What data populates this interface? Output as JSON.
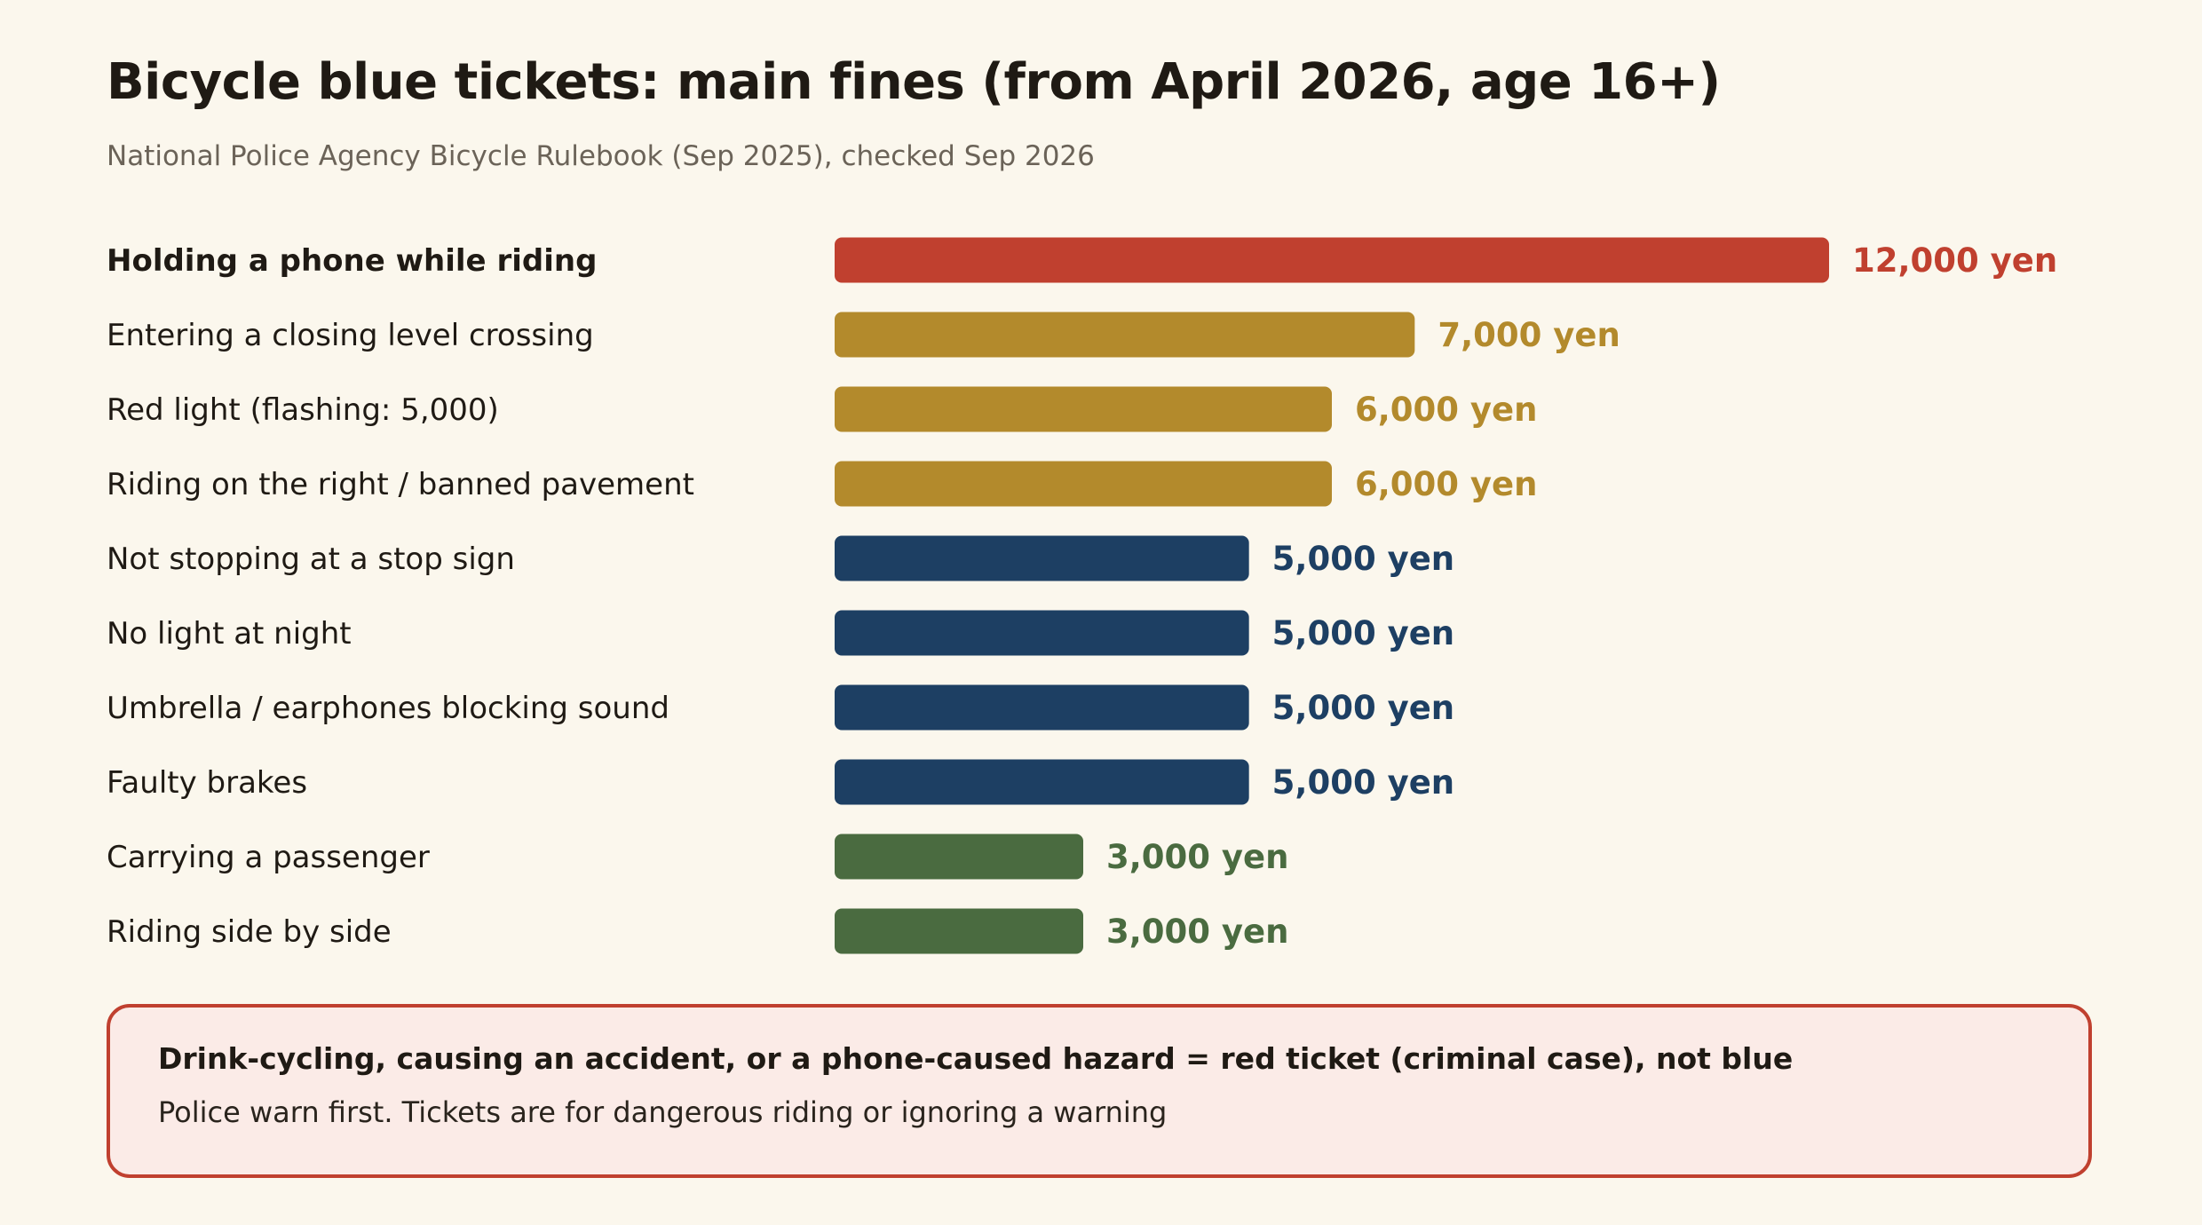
{
  "header": {
    "title": "Bicycle blue tickets: main fines (from April 2026, age 16+)",
    "subtitle": "National Police Agency Bicycle Rulebook (Sep 2025), checked Sep 2026"
  },
  "chart_data": {
    "type": "bar",
    "orientation": "horizontal",
    "title": "Bicycle blue tickets: main fines (from April 2026, age 16+)",
    "subtitle": "National Police Agency Bicycle Rulebook (Sep 2025), checked Sep 2026",
    "xlim": [
      0,
      12000
    ],
    "grid": false,
    "legend": "none",
    "value_unit": "yen",
    "categories": [
      "Holding a phone while riding",
      "Entering a closing level crossing",
      "Red light (flashing: 5,000)",
      "Riding on the right / banned pavement",
      "Not stopping at a stop sign",
      "No light at night",
      "Umbrella / earphones blocking sound",
      "Faulty brakes",
      "Carrying a passenger",
      "Riding side by side"
    ],
    "values": [
      12000,
      7000,
      6000,
      6000,
      5000,
      5000,
      5000,
      5000,
      3000,
      3000
    ],
    "value_labels": [
      "12,000 yen",
      "7,000 yen",
      "6,000 yen",
      "6,000 yen",
      "5,000 yen",
      "5,000 yen",
      "5,000 yen",
      "5,000 yen",
      "3,000 yen",
      "3,000 yen"
    ],
    "highlight_index": 0,
    "colors": {
      "12000": "#c0402f",
      "7000": "#b38a2c",
      "6000": "#b38a2c",
      "5000": "#1d3f63",
      "3000": "#4a6b40"
    }
  },
  "note": {
    "heading": "Drink-cycling, causing an accident, or a phone-caused hazard = red ticket (criminal case), not blue",
    "body": "Police warn first. Tickets are for dangerous riding or ignoring a warning"
  }
}
